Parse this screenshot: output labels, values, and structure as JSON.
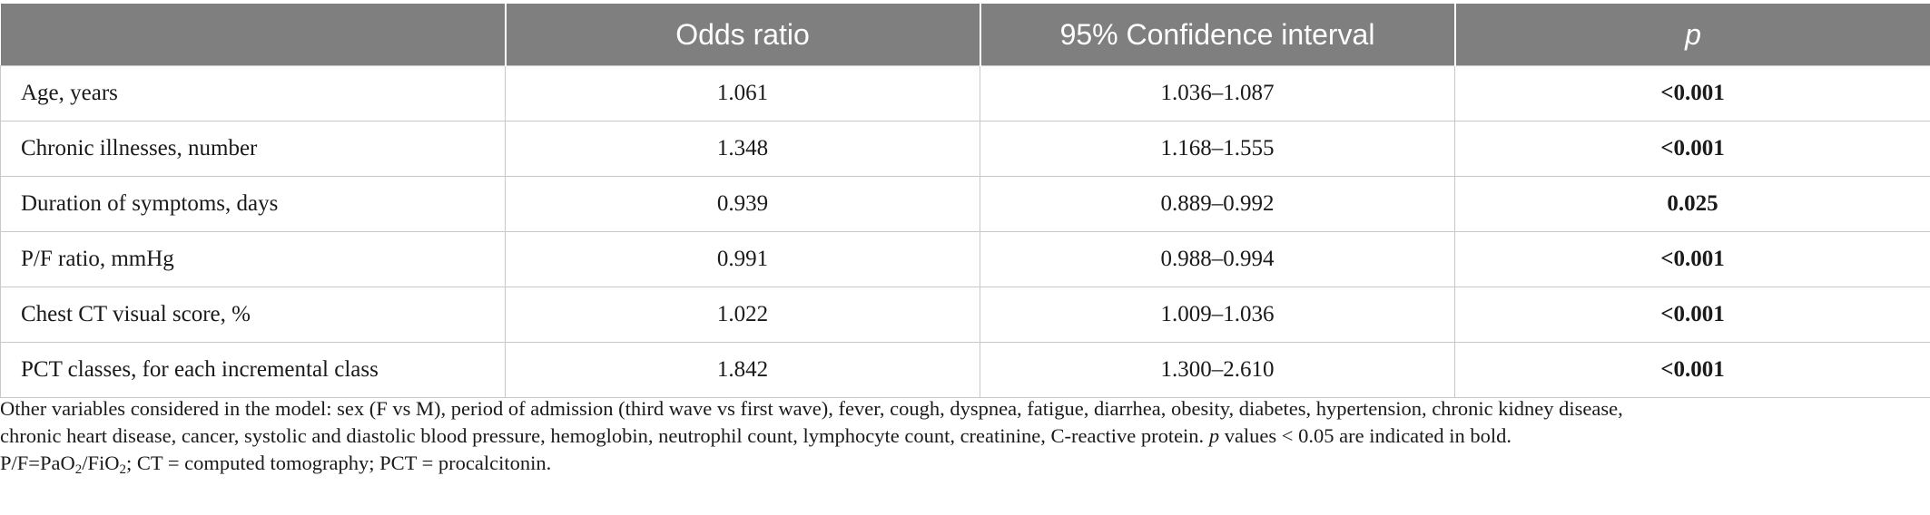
{
  "table": {
    "headers": {
      "variable": "",
      "odds_ratio": "Odds ratio",
      "ci": "95% Confidence interval",
      "p": "p"
    },
    "rows": [
      {
        "variable": "Age, years",
        "odds_ratio": "1.061",
        "ci": "1.036–1.087",
        "p": "<0.001"
      },
      {
        "variable": "Chronic illnesses, number",
        "odds_ratio": "1.348",
        "ci": "1.168–1.555",
        "p": "<0.001"
      },
      {
        "variable": "Duration of symptoms, days",
        "odds_ratio": "0.939",
        "ci": "0.889–0.992",
        "p": "0.025"
      },
      {
        "variable": "P/F ratio, mmHg",
        "odds_ratio": "0.991",
        "ci": "0.988–0.994",
        "p": "<0.001"
      },
      {
        "variable": "Chest CT visual score, %",
        "odds_ratio": "1.022",
        "ci": "1.009–1.036",
        "p": "<0.001"
      },
      {
        "variable": "PCT classes, for each incremental class",
        "odds_ratio": "1.842",
        "ci": "1.300–2.610",
        "p": "<0.001"
      }
    ]
  },
  "notes": {
    "line1": "Other variables considered in the model: sex (F vs M), period of admission (third wave vs first wave), fever, cough, dyspnea, fatigue, diarrhea, obesity, diabetes, hypertension, chronic kidney disease,",
    "line2_a": "chronic heart disease, cancer, systolic and diastolic blood pressure, hemoglobin, neutrophil count, lymphocyte count, creatinine, C-reactive protein. ",
    "line2_p": "p",
    "line2_b": " values < 0.05 are indicated in bold.",
    "line3_a": "P/F=PaO",
    "line3_sub1": "2",
    "line3_b": "/FiO",
    "line3_sub2": "2",
    "line3_c": "; CT = computed tomography; PCT = procalcitonin."
  }
}
